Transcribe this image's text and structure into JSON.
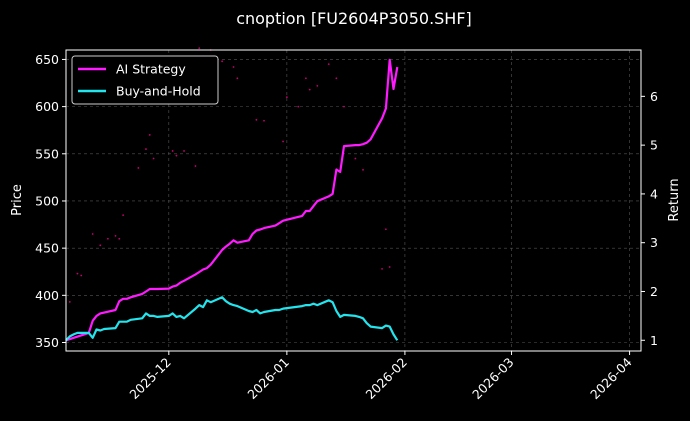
{
  "chart_data": {
    "type": "line",
    "title": "cnoption [FU2604P3050.SHF]",
    "xlabel": "",
    "ylabel": "Price",
    "y2label": "Return",
    "grid": true,
    "legend_position": "top-left",
    "xlim": [
      "2025-11-04",
      "2026-04-04"
    ],
    "ylim": [
      341,
      660
    ],
    "y2lim": [
      0.78,
      6.95
    ],
    "x_ticks": [
      "2025-12",
      "2026-01",
      "2026-02",
      "2026-03",
      "2026-04"
    ],
    "y_ticks": [
      350,
      400,
      450,
      500,
      550,
      600,
      650
    ],
    "y2_ticks": [
      1,
      2,
      3,
      4,
      5,
      6
    ],
    "colors": {
      "background": "#000000",
      "ai_strategy": "#ff1aff",
      "buy_and_hold": "#22e5ee",
      "price_dots": "#c8006e",
      "grid": "#555555"
    },
    "series": [
      {
        "name": "AI Strategy",
        "axis": "right",
        "x": [
          "2025-11-04",
          "2025-11-10",
          "2025-11-11",
          "2025-11-12",
          "2025-11-13",
          "2025-11-17",
          "2025-11-18",
          "2025-11-19",
          "2025-11-20",
          "2025-11-21",
          "2025-11-24",
          "2025-11-25",
          "2025-11-26",
          "2025-11-27",
          "2025-11-28",
          "2025-12-01",
          "2025-12-02",
          "2025-12-03",
          "2025-12-04",
          "2025-12-05",
          "2025-12-08",
          "2025-12-09",
          "2025-12-10",
          "2025-12-11",
          "2025-12-12",
          "2025-12-15",
          "2025-12-16",
          "2025-12-17",
          "2025-12-18",
          "2025-12-19",
          "2025-12-22",
          "2025-12-23",
          "2025-12-24",
          "2025-12-25",
          "2025-12-26",
          "2025-12-29",
          "2025-12-30",
          "2025-12-31",
          "2026-01-05",
          "2026-01-06",
          "2026-01-07",
          "2026-01-08",
          "2026-01-09",
          "2026-01-12",
          "2026-01-13",
          "2026-01-14",
          "2026-01-15",
          "2026-01-16",
          "2026-01-19",
          "2026-01-20",
          "2026-01-21",
          "2026-01-22",
          "2026-01-23",
          "2026-01-26",
          "2026-01-27",
          "2026-01-28",
          "2026-01-29",
          "2026-01-30"
        ],
        "values": [
          1.0,
          1.15,
          1.4,
          1.5,
          1.55,
          1.62,
          1.8,
          1.85,
          1.85,
          1.88,
          1.95,
          2.0,
          2.05,
          2.05,
          2.05,
          2.06,
          2.1,
          2.12,
          2.18,
          2.22,
          2.35,
          2.4,
          2.45,
          2.48,
          2.55,
          2.85,
          2.92,
          2.98,
          3.05,
          3.0,
          3.05,
          3.18,
          3.25,
          3.27,
          3.3,
          3.35,
          3.4,
          3.45,
          3.55,
          3.65,
          3.65,
          3.75,
          3.85,
          3.95,
          4.0,
          4.5,
          4.45,
          4.98,
          5.0,
          5.0,
          5.02,
          5.05,
          5.12,
          5.55,
          5.75,
          6.75,
          6.15,
          6.6
        ]
      },
      {
        "name": "Buy-and-Hold",
        "axis": "right",
        "x": [
          "2025-11-04",
          "2025-11-05",
          "2025-11-06",
          "2025-11-07",
          "2025-11-10",
          "2025-11-11",
          "2025-11-12",
          "2025-11-13",
          "2025-11-14",
          "2025-11-17",
          "2025-11-18",
          "2025-11-19",
          "2025-11-20",
          "2025-11-21",
          "2025-11-24",
          "2025-11-25",
          "2025-11-26",
          "2025-11-27",
          "2025-11-28",
          "2025-12-01",
          "2025-12-02",
          "2025-12-03",
          "2025-12-04",
          "2025-12-05",
          "2025-12-08",
          "2025-12-09",
          "2025-12-10",
          "2025-12-11",
          "2025-12-12",
          "2025-12-15",
          "2025-12-16",
          "2025-12-17",
          "2025-12-18",
          "2025-12-19",
          "2025-12-22",
          "2025-12-23",
          "2025-12-24",
          "2025-12-25",
          "2025-12-26",
          "2025-12-29",
          "2025-12-30",
          "2025-12-31",
          "2026-01-05",
          "2026-01-06",
          "2026-01-07",
          "2026-01-08",
          "2026-01-09",
          "2026-01-12",
          "2026-01-13",
          "2026-01-14",
          "2026-01-15",
          "2026-01-16",
          "2026-01-19",
          "2026-01-20",
          "2026-01-21",
          "2026-01-22",
          "2026-01-23",
          "2026-01-26",
          "2026-01-27",
          "2026-01-28",
          "2026-01-29",
          "2026-01-30"
        ],
        "values": [
          1.0,
          1.08,
          1.12,
          1.15,
          1.15,
          1.05,
          1.22,
          1.2,
          1.23,
          1.25,
          1.38,
          1.38,
          1.38,
          1.42,
          1.45,
          1.55,
          1.5,
          1.5,
          1.48,
          1.5,
          1.55,
          1.48,
          1.5,
          1.45,
          1.65,
          1.72,
          1.68,
          1.82,
          1.78,
          1.88,
          1.8,
          1.75,
          1.72,
          1.7,
          1.6,
          1.58,
          1.62,
          1.55,
          1.58,
          1.62,
          1.62,
          1.65,
          1.7,
          1.72,
          1.72,
          1.75,
          1.72,
          1.82,
          1.78,
          1.6,
          1.48,
          1.52,
          1.5,
          1.48,
          1.45,
          1.35,
          1.28,
          1.25,
          1.3,
          1.28,
          1.12,
          1.0
        ]
      },
      {
        "name": "Price",
        "axis": "left",
        "style": "dots",
        "x": [
          "2025-11-05",
          "2025-11-07",
          "2025-11-08",
          "2025-11-11",
          "2025-11-13",
          "2025-11-15",
          "2025-11-17",
          "2025-11-18",
          "2025-11-19",
          "2025-11-23",
          "2025-11-25",
          "2025-11-26",
          "2025-11-27",
          "2025-12-02",
          "2025-12-03",
          "2025-12-05",
          "2025-12-08",
          "2025-12-09",
          "2025-12-12",
          "2025-12-15",
          "2025-12-18",
          "2025-12-19",
          "2025-12-24",
          "2025-12-26",
          "2025-12-31",
          "2026-01-01",
          "2026-01-04",
          "2026-01-06",
          "2026-01-07",
          "2026-01-09",
          "2026-01-12",
          "2026-01-14",
          "2026-01-16",
          "2026-01-19",
          "2026-01-21",
          "2026-01-26",
          "2026-01-27",
          "2026-01-28"
        ],
        "values": [
          393,
          423,
          421,
          465,
          453,
          460,
          463,
          460,
          485,
          535,
          555,
          570,
          545,
          553,
          548,
          553,
          537,
          662,
          660,
          648,
          642,
          630,
          586,
          585,
          563,
          610,
          600,
          630,
          618,
          622,
          645,
          630,
          600,
          545,
          533,
          428,
          470,
          430
        ]
      }
    ]
  }
}
